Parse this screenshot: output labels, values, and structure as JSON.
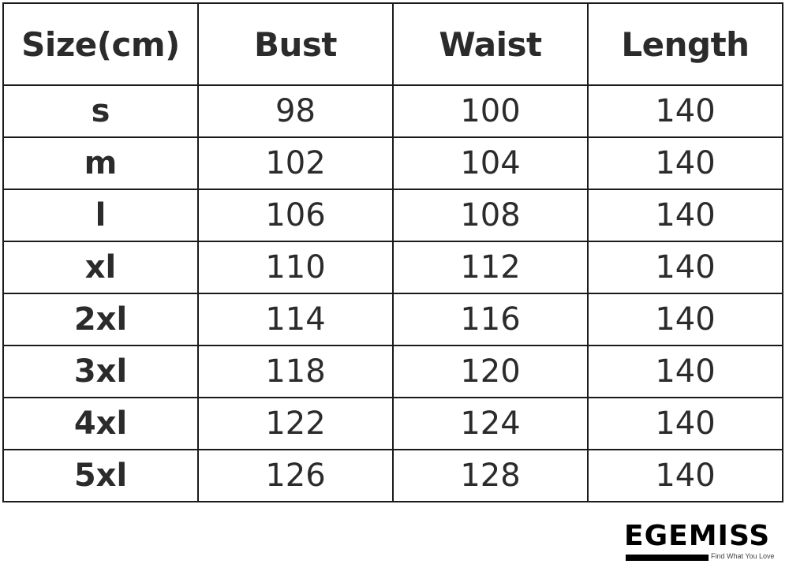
{
  "chart_data": {
    "type": "table",
    "columns": [
      "Size(cm)",
      "Bust",
      "Waist",
      "Length"
    ],
    "rows": [
      [
        "s",
        "98",
        "100",
        "140"
      ],
      [
        "m",
        "102",
        "104",
        "140"
      ],
      [
        "l",
        "106",
        "108",
        "140"
      ],
      [
        "xl",
        "110",
        "112",
        "140"
      ],
      [
        "2xl",
        "114",
        "116",
        "140"
      ],
      [
        "3xl",
        "118",
        "120",
        "140"
      ],
      [
        "4xl",
        "122",
        "124",
        "140"
      ],
      [
        "5xl",
        "126",
        "128",
        "140"
      ]
    ]
  },
  "watermark": {
    "brand": "EGEMISS",
    "tagline": "Find What You Love"
  }
}
